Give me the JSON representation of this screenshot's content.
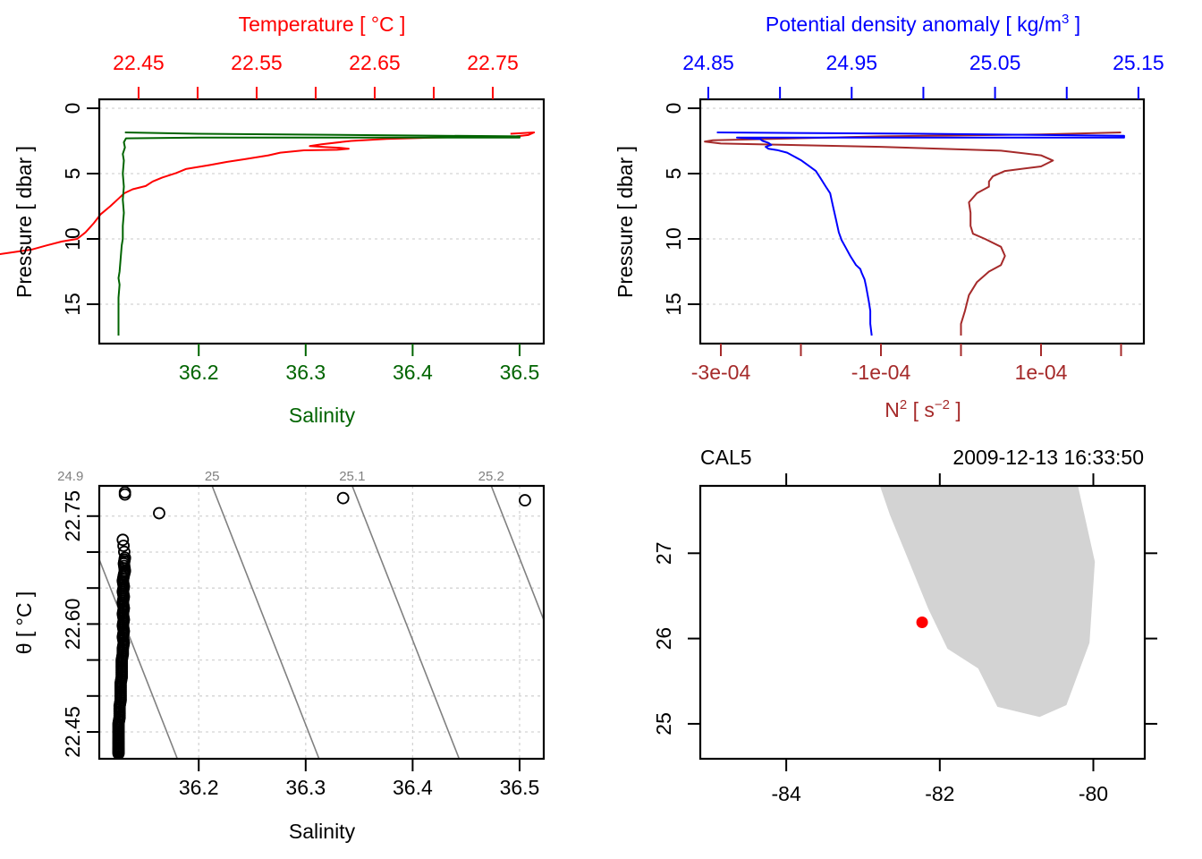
{
  "chart_data": [
    {
      "id": "profile_ts",
      "type": "line",
      "top_axis": {
        "label": "Temperature [ °C ]",
        "color": "#ff0000",
        "range": [
          22.4167,
          22.7932
        ],
        "ticks": [
          22.45,
          22.5,
          22.55,
          22.6,
          22.65,
          22.7,
          22.75
        ],
        "tick_labels": [
          "22.45",
          "",
          "22.55",
          "",
          "22.65",
          "",
          "22.75"
        ]
      },
      "bottom_axis": {
        "label": "Salinity",
        "color": "#006400",
        "range": [
          36.107,
          36.5226
        ],
        "ticks": [
          36.2,
          36.3,
          36.4,
          36.5
        ],
        "tick_labels": [
          "36.2",
          "36.3",
          "36.4",
          "36.5"
        ]
      },
      "left_axis": {
        "label": "Pressure [ dbar ]",
        "color": "#000000",
        "range": [
          0,
          17.9
        ],
        "reversed": true,
        "ticks": [
          0,
          5,
          10,
          15
        ],
        "tick_labels": [
          "0",
          "5",
          "10",
          "15"
        ]
      },
      "grid": "horizontal-dotted",
      "series": [
        {
          "name": "Temperature",
          "color": "#ff0000",
          "axis": "top",
          "points": [
            [
              22.765,
              1.95
            ],
            [
              22.785,
              1.85
            ],
            [
              22.78,
              2.05
            ],
            [
              22.77,
              2.15
            ],
            [
              22.7,
              2.25
            ],
            [
              22.66,
              2.35
            ],
            [
              22.63,
              2.5
            ],
            [
              22.605,
              2.75
            ],
            [
              22.595,
              2.9
            ],
            [
              22.61,
              2.98
            ],
            [
              22.62,
              3.02
            ],
            [
              22.628,
              3.1
            ],
            [
              22.618,
              3.18
            ],
            [
              22.59,
              3.22
            ],
            [
              22.57,
              3.4
            ],
            [
              22.56,
              3.6
            ],
            [
              22.54,
              3.9
            ],
            [
              22.525,
              4.1
            ],
            [
              22.51,
              4.35
            ],
            [
              22.49,
              4.65
            ],
            [
              22.482,
              4.95
            ],
            [
              22.47,
              5.3
            ],
            [
              22.462,
              5.6
            ],
            [
              22.456,
              5.95
            ],
            [
              22.445,
              6.2
            ],
            [
              22.438,
              6.5
            ],
            [
              22.432,
              7.0
            ],
            [
              22.426,
              7.5
            ],
            [
              22.418,
              8.1
            ],
            [
              22.412,
              8.8
            ],
            [
              22.405,
              9.5
            ],
            [
              22.398,
              10.0
            ],
            [
              22.385,
              10.2
            ],
            [
              22.372,
              10.5
            ],
            [
              22.36,
              10.8
            ],
            [
              22.345,
              11.0
            ],
            [
              22.33,
              11.2
            ],
            [
              22.315,
              11.5
            ],
            [
              22.3,
              11.6
            ],
            [
              22.296,
              11.9
            ],
            [
              22.28,
              12.0
            ],
            [
              22.265,
              12.05
            ],
            [
              22.255,
              12.15
            ],
            [
              22.252,
              12.4
            ],
            [
              22.246,
              12.6
            ],
            [
              22.236,
              12.8
            ],
            [
              22.233,
              13.0
            ],
            [
              22.226,
              13.2
            ],
            [
              22.222,
              13.5
            ],
            [
              22.218,
              13.8
            ],
            [
              22.214,
              14.1
            ],
            [
              22.212,
              14.6
            ],
            [
              22.208,
              14.9
            ],
            [
              22.205,
              15.2
            ],
            [
              22.203,
              15.6
            ],
            [
              22.202,
              16.0
            ],
            [
              22.201,
              16.5
            ],
            [
              22.199,
              17.0
            ],
            [
              22.2,
              17.4
            ]
          ]
        },
        {
          "name": "Salinity",
          "color": "#006400",
          "axis": "bottom",
          "points": [
            [
              36.131,
              1.85
            ],
            [
              36.2,
              1.95
            ],
            [
              36.5,
              2.15
            ],
            [
              36.5,
              2.25
            ],
            [
              36.2,
              2.25
            ],
            [
              36.132,
              2.3
            ],
            [
              36.13,
              2.6
            ],
            [
              36.131,
              3.0
            ],
            [
              36.129,
              3.5
            ],
            [
              36.13,
              4.0
            ],
            [
              36.129,
              5.0
            ],
            [
              36.13,
              6.0
            ],
            [
              36.129,
              7.0
            ],
            [
              36.13,
              8.0
            ],
            [
              36.129,
              9.0
            ],
            [
              36.129,
              10.0
            ],
            [
              36.128,
              10.5
            ],
            [
              36.127,
              11.5
            ],
            [
              36.126,
              12.5
            ],
            [
              36.125,
              13.0
            ],
            [
              36.126,
              13.5
            ],
            [
              36.125,
              14.5
            ],
            [
              36.125,
              15.5
            ],
            [
              36.125,
              16.5
            ],
            [
              36.125,
              17.4
            ]
          ]
        }
      ]
    },
    {
      "id": "profile_density_n2",
      "type": "line",
      "top_axis": {
        "label": "Potential density anomaly [ kg/m³ ]",
        "color": "#0000ff",
        "range": [
          24.8444,
          25.1538
        ],
        "ticks": [
          24.85,
          24.9,
          24.95,
          25.0,
          25.05,
          25.1,
          25.15
        ],
        "tick_labels": [
          "24.85",
          "",
          "24.95",
          "",
          "25.05",
          "",
          "25.15"
        ]
      },
      "bottom_axis": {
        "label": "N² [ s⁻² ]",
        "color": "#a52a2a",
        "range": [
          -0.0003257,
          0.0002285
        ],
        "ticks": [
          -0.0003,
          -0.0002,
          -0.0001,
          0,
          0.0001,
          0.0002
        ],
        "tick_labels": [
          "-3e-04",
          "",
          "-1e-04",
          "",
          "1e-04",
          ""
        ]
      },
      "left_axis": {
        "label": "Pressure [ dbar ]",
        "color": "#000000",
        "range": [
          0,
          17.9
        ],
        "reversed": true,
        "ticks": [
          0,
          5,
          10,
          15
        ],
        "tick_labels": [
          "0",
          "5",
          "10",
          "15"
        ]
      },
      "grid": "horizontal-dotted",
      "series": [
        {
          "name": "Potential density anomaly",
          "color": "#0000ff",
          "axis": "top",
          "points": [
            [
              24.856,
              1.85
            ],
            [
              25.0,
              1.95
            ],
            [
              25.14,
              2.1
            ],
            [
              25.14,
              2.25
            ],
            [
              25.0,
              2.25
            ],
            [
              24.87,
              2.25
            ],
            [
              24.886,
              2.35
            ],
            [
              24.888,
              2.5
            ],
            [
              24.892,
              2.65
            ],
            [
              24.894,
              2.8
            ],
            [
              24.89,
              2.95
            ],
            [
              24.892,
              3.1
            ],
            [
              24.898,
              3.2
            ],
            [
              24.905,
              3.4
            ],
            [
              24.91,
              3.7
            ],
            [
              24.915,
              4.0
            ],
            [
              24.92,
              4.4
            ],
            [
              24.925,
              4.8
            ],
            [
              24.928,
              5.3
            ],
            [
              24.932,
              6.0
            ],
            [
              24.935,
              6.5
            ],
            [
              24.937,
              7.5
            ],
            [
              24.939,
              8.5
            ],
            [
              24.941,
              9.5
            ],
            [
              24.943,
              10.1
            ],
            [
              24.946,
              10.7
            ],
            [
              24.949,
              11.3
            ],
            [
              24.953,
              12.0
            ],
            [
              24.956,
              12.3
            ],
            [
              24.957,
              12.6
            ],
            [
              24.959,
              13.1
            ],
            [
              24.96,
              13.6
            ],
            [
              24.961,
              14.2
            ],
            [
              24.962,
              14.8
            ],
            [
              24.963,
              15.5
            ],
            [
              24.963,
              16.5
            ],
            [
              24.964,
              17.4
            ]
          ]
        },
        {
          "name": "N2",
          "color": "#a52a2a",
          "axis": "bottom",
          "points": [
            [
              0.0002,
              1.85
            ],
            [
              0.0001,
              2.0
            ],
            [
              -0.0001,
              2.15
            ],
            [
              -0.00031,
              2.45
            ],
            [
              -0.00032,
              2.55
            ],
            [
              -0.0003,
              2.7
            ],
            [
              -0.0001,
              2.95
            ],
            [
              5e-05,
              3.25
            ],
            [
              0.0001,
              3.6
            ],
            [
              0.000115,
              4.0
            ],
            [
              0.0001,
              4.45
            ],
            [
              5.5e-05,
              4.8
            ],
            [
              4e-05,
              5.2
            ],
            [
              3.5e-05,
              5.6
            ],
            [
              3.5e-05,
              6.0
            ],
            [
              2e-05,
              6.5
            ],
            [
              1e-05,
              7.2
            ],
            [
              1.2e-05,
              8.0
            ],
            [
              1.2e-05,
              9.0
            ],
            [
              1.5e-05,
              9.6
            ],
            [
              3e-05,
              10.0
            ],
            [
              5e-05,
              10.6
            ],
            [
              5.5e-05,
              11.3
            ],
            [
              5e-05,
              12.0
            ],
            [
              3.5e-05,
              12.5
            ],
            [
              2e-05,
              13.3
            ],
            [
              1e-05,
              14.3
            ],
            [
              5e-06,
              15.5
            ],
            [
              0.0,
              16.5
            ],
            [
              0.0,
              17.4
            ]
          ]
        }
      ]
    },
    {
      "id": "ts_diagram",
      "type": "scatter",
      "xlabel": "Salinity",
      "ylabel": "θ [ °C ]",
      "x_axis": {
        "range": [
          36.107,
          36.5226
        ],
        "ticks": [
          36.2,
          36.3,
          36.4,
          36.5
        ],
        "tick_labels": [
          "36.2",
          "36.3",
          "36.4",
          "36.5"
        ]
      },
      "y_axis": {
        "range": [
          22.4127,
          22.792
        ],
        "ticks": [
          22.45,
          22.5,
          22.55,
          22.6,
          22.65,
          22.7,
          22.75
        ],
        "tick_labels": [
          "22.45",
          "",
          "",
          "22.60",
          "",
          "",
          "22.75"
        ]
      },
      "grid": "dotted",
      "isopycnals": [
        {
          "label": "24.9",
          "points": [
            [
              36.18,
              22.4127
            ],
            [
              36.08,
              22.792
            ]
          ]
        },
        {
          "label": "25",
          "points": [
            [
              36.3125,
              22.4127
            ],
            [
              36.2125,
              22.792
            ]
          ]
        },
        {
          "label": "25.1",
          "points": [
            [
              36.4435,
              22.4127
            ],
            [
              36.3435,
              22.792
            ]
          ]
        },
        {
          "label": "25.2",
          "points": [
            [
              36.5735,
              22.4127
            ],
            [
              36.4735,
              22.792
            ]
          ]
        }
      ],
      "points": [
        [
          36.131,
          22.783
        ],
        [
          36.131,
          22.78
        ],
        [
          36.163,
          22.754
        ],
        [
          36.335,
          22.775
        ],
        [
          36.505,
          22.772
        ],
        [
          36.129,
          22.717
        ],
        [
          36.131,
          22.692
        ],
        [
          36.13,
          22.684
        ],
        [
          36.131,
          22.674
        ],
        [
          36.13,
          22.668
        ],
        [
          36.129,
          22.66
        ],
        [
          36.13,
          22.652
        ],
        [
          36.129,
          22.645
        ],
        [
          36.13,
          22.638
        ],
        [
          36.129,
          22.63
        ],
        [
          36.13,
          22.622
        ],
        [
          36.129,
          22.614
        ],
        [
          36.13,
          22.606
        ],
        [
          36.129,
          22.598
        ],
        [
          36.13,
          22.59
        ],
        [
          36.129,
          22.582
        ],
        [
          36.13,
          22.574
        ],
        [
          36.129,
          22.566
        ],
        [
          36.129,
          22.558
        ],
        [
          36.128,
          22.55
        ],
        [
          36.128,
          22.542
        ],
        [
          36.128,
          22.534
        ],
        [
          36.128,
          22.526
        ],
        [
          36.127,
          22.518
        ],
        [
          36.127,
          22.51
        ],
        [
          36.127,
          22.502
        ],
        [
          36.127,
          22.494
        ],
        [
          36.126,
          22.486
        ],
        [
          36.126,
          22.478
        ],
        [
          36.126,
          22.47
        ],
        [
          36.125,
          22.462
        ],
        [
          36.125,
          22.455
        ],
        [
          36.125,
          22.448
        ],
        [
          36.125,
          22.441
        ],
        [
          36.125,
          22.435
        ],
        [
          36.125,
          22.429
        ],
        [
          36.125,
          22.424
        ],
        [
          36.125,
          22.42
        ]
      ]
    },
    {
      "id": "station_map",
      "type": "scatter",
      "title_left": "CAL5",
      "title_right": "2009-12-13 16:33:50",
      "x_axis": {
        "range": [
          -85.12,
          -79.33
        ],
        "ticks": [
          -84,
          -82,
          -80
        ],
        "tick_labels": [
          "-84",
          "-82",
          "-80"
        ]
      },
      "y_axis": {
        "range": [
          24.59,
          27.79
        ],
        "ticks": [
          25,
          26,
          27
        ],
        "tick_labels": [
          "25",
          "26",
          "27"
        ]
      },
      "land_color": "#d3d3d3",
      "land_polygon": [
        [
          -82.78,
          27.79
        ],
        [
          -82.65,
          27.45
        ],
        [
          -82.4,
          26.9
        ],
        [
          -82.15,
          26.35
        ],
        [
          -81.9,
          25.88
        ],
        [
          -81.5,
          25.65
        ],
        [
          -81.25,
          25.2
        ],
        [
          -80.7,
          25.08
        ],
        [
          -80.35,
          25.22
        ],
        [
          -80.05,
          25.95
        ],
        [
          -79.98,
          26.9
        ],
        [
          -80.2,
          27.79
        ]
      ],
      "station": {
        "lon": -82.23,
        "lat": 26.19,
        "color": "#ff0000"
      }
    }
  ]
}
